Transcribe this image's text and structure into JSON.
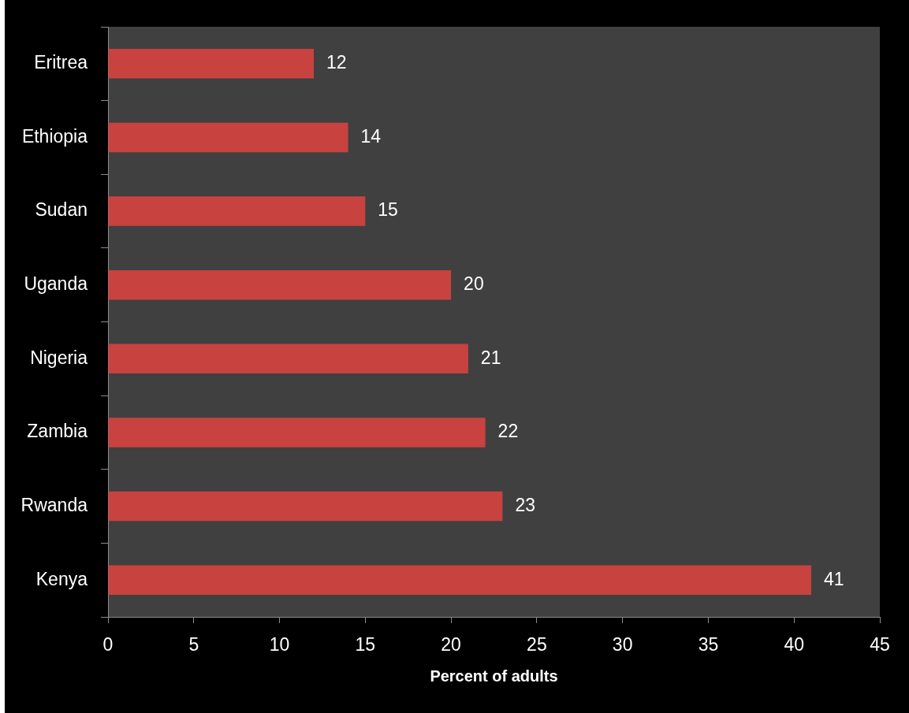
{
  "chart_data": {
    "type": "bar",
    "orientation": "horizontal",
    "categories": [
      "Eritrea",
      "Ethiopia",
      "Sudan",
      "Uganda",
      "Nigeria",
      "Zambia",
      "Rwanda",
      "Kenya"
    ],
    "values": [
      12,
      14,
      15,
      20,
      21,
      22,
      23,
      41
    ],
    "color": "#c8423f",
    "xlim": [
      0,
      45
    ],
    "xticks": [
      0,
      5,
      10,
      15,
      20,
      25,
      30,
      35,
      40,
      45
    ],
    "xlabel": "Percent of adults",
    "data_labels": true
  }
}
